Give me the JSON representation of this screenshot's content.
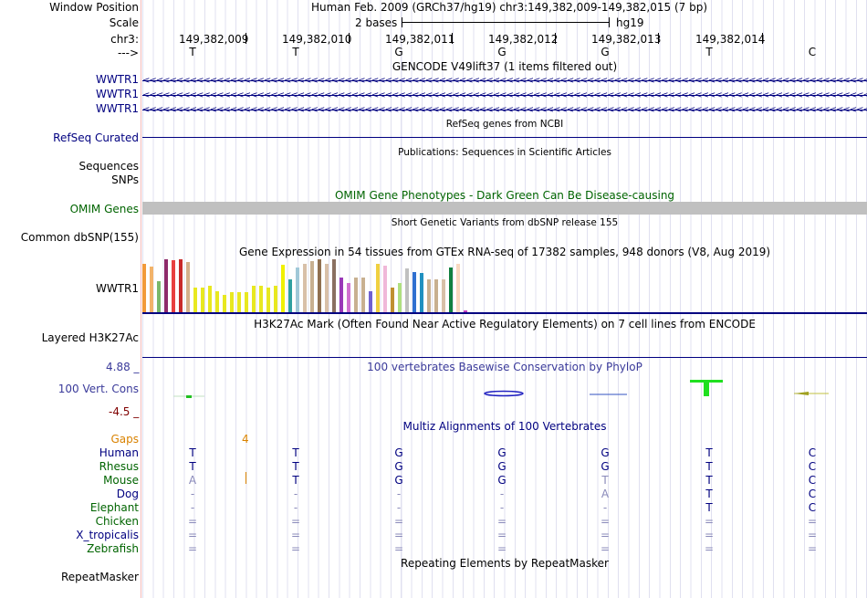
{
  "header": {
    "window_label": "Window Position",
    "scale_label": "Scale",
    "chrom_label": "chr3:",
    "arrow_label": "--->",
    "assembly_text": "Human Feb. 2009 (GRCh37/hg19)   chr3:149,382,009-149,382,015 (7 bp)",
    "scale_text": "2 bases",
    "scale_db": "hg19",
    "coords": [
      "149,382,009",
      "149,382,010",
      "149,382,011",
      "149,382,012",
      "149,382,013",
      "149,382,014"
    ],
    "sequence": [
      "T",
      "T",
      "G",
      "G",
      "G",
      "T",
      "C"
    ]
  },
  "tracks": {
    "gencode": {
      "title": "GENCODE V49lift37 (1 items filtered out)",
      "items": [
        "WWTR1",
        "WWTR1",
        "WWTR1"
      ],
      "strand_glyphs": "<<<<<<<<<<<<<<<<<<<<<<<<<<<<<<<<<<<<<<<<<<<<<<<<<<<<<<<<<<<<<<<<<<<<<<<<<<<<<<<<<<<<<<<<<<<<<<<<<<<<<<<<<<<<<<<<<<<<<<<<<<<<<<<<<<<<<<<<<<<"
    },
    "refseq": {
      "title": "RefSeq genes from NCBI",
      "label": "RefSeq Curated"
    },
    "publications": {
      "title": "Publications: Sequences in Scientific Articles",
      "label1": "Sequences",
      "label2": "SNPs"
    },
    "omim": {
      "title": "OMIM Gene Phenotypes - Dark Green Can Be Disease-causing",
      "label": "OMIM Genes"
    },
    "dbsnp": {
      "title": "Short Genetic Variants from dbSNP release 155",
      "label": "Common dbSNP(155)"
    },
    "gtex": {
      "title": "Gene Expression in 54 tissues from GTEx RNA-seq of 17382 samples, 948 donors (V8, Aug 2019)",
      "label": "WWTR1",
      "bars": [
        {
          "v": 0.92,
          "c": "#f29a3a"
        },
        {
          "v": 0.86,
          "c": "#f2b36a"
        },
        {
          "v": 0.58,
          "c": "#7ab86a"
        },
        {
          "v": 1.0,
          "c": "#8e2a6a"
        },
        {
          "v": 0.98,
          "c": "#e84040"
        },
        {
          "v": 1.0,
          "c": "#c82a2a"
        },
        {
          "v": 0.94,
          "c": "#d4b08a"
        },
        {
          "v": 0.46,
          "c": "#e8e820"
        },
        {
          "v": 0.46,
          "c": "#e8e820"
        },
        {
          "v": 0.5,
          "c": "#e8e820"
        },
        {
          "v": 0.4,
          "c": "#e8e820"
        },
        {
          "v": 0.32,
          "c": "#e8e820"
        },
        {
          "v": 0.38,
          "c": "#e8e820"
        },
        {
          "v": 0.38,
          "c": "#e8e820"
        },
        {
          "v": 0.38,
          "c": "#e8e820"
        },
        {
          "v": 0.5,
          "c": "#e8e820"
        },
        {
          "v": 0.5,
          "c": "#e8e820"
        },
        {
          "v": 0.46,
          "c": "#e8e820"
        },
        {
          "v": 0.5,
          "c": "#e8e820"
        },
        {
          "v": 0.9,
          "c": "#f0f000"
        },
        {
          "v": 0.62,
          "c": "#30a0a0"
        },
        {
          "v": 0.84,
          "c": "#a0c8d8"
        },
        {
          "v": 0.92,
          "c": "#d8c0a8"
        },
        {
          "v": 0.96,
          "c": "#c8b090"
        },
        {
          "v": 1.0,
          "c": "#907050"
        },
        {
          "v": 0.92,
          "c": "#d8c0a8"
        },
        {
          "v": 1.0,
          "c": "#8a7060"
        },
        {
          "v": 0.66,
          "c": "#9a38b8"
        },
        {
          "v": 0.56,
          "c": "#d070d0"
        },
        {
          "v": 0.66,
          "c": "#c8b090"
        },
        {
          "v": 0.66,
          "c": "#c8b090"
        },
        {
          "v": 0.4,
          "c": "#7060d0"
        },
        {
          "v": 0.92,
          "c": "#f0d040"
        },
        {
          "v": 0.88,
          "c": "#f0b8d8"
        },
        {
          "v": 0.46,
          "c": "#c09030"
        },
        {
          "v": 0.56,
          "c": "#b0e080"
        },
        {
          "v": 0.82,
          "c": "#c0c0c0"
        },
        {
          "v": 0.76,
          "c": "#3070d0"
        },
        {
          "v": 0.74,
          "c": "#2090c0"
        },
        {
          "v": 0.62,
          "c": "#c8b090"
        },
        {
          "v": 0.62,
          "c": "#c8b090"
        },
        {
          "v": 0.62,
          "c": "#d8c0a8"
        },
        {
          "v": 0.84,
          "c": "#108040"
        },
        {
          "v": 0.92,
          "c": "#f8d8c0"
        },
        {
          "v": 0.04,
          "c": "#c040c0"
        }
      ]
    },
    "h3k27ac": {
      "title": "H3K27Ac Mark (Often Found Near Active Regulatory Elements) on 7 cell lines from ENCODE",
      "label": "Layered H3K27Ac"
    },
    "phylop": {
      "title": "100 vertebrates Basewise Conservation by PhyloP",
      "label": "100 Vert. Cons",
      "max": "4.88 _",
      "min": "-4.5 _"
    },
    "multiz": {
      "title": "Multiz Alignments of 100 Vertebrates",
      "gaps_label": "Gaps",
      "gap_count": "4",
      "species": [
        {
          "name": "Human",
          "bases": [
            "T",
            "T",
            "G",
            "G",
            "G",
            "T",
            "C"
          ]
        },
        {
          "name": "Rhesus",
          "bases": [
            "T",
            "T",
            "G",
            "G",
            "G",
            "T",
            "C"
          ]
        },
        {
          "name": "Mouse",
          "bases": [
            "A",
            "T",
            "G",
            "G",
            "T",
            "T",
            "C"
          ]
        },
        {
          "name": "Dog",
          "bases": [
            "-",
            "-",
            "-",
            "-",
            "A",
            "T",
            "C"
          ]
        },
        {
          "name": "Elephant",
          "bases": [
            "-",
            "-",
            "-",
            "-",
            "-",
            "T",
            "C"
          ]
        },
        {
          "name": "Chicken",
          "bases": [
            "=",
            "=",
            "=",
            "=",
            "=",
            "=",
            "="
          ]
        },
        {
          "name": "X_tropicalis",
          "bases": [
            "=",
            "=",
            "=",
            "=",
            "=",
            "=",
            "="
          ]
        },
        {
          "name": "Zebrafish",
          "bases": [
            "=",
            "=",
            "=",
            "=",
            "=",
            "=",
            "="
          ]
        }
      ]
    },
    "repeatmasker": {
      "title": "Repeating Elements by RepeatMasker",
      "label": "RepeatMasker"
    }
  },
  "colors": {
    "navy": "#000080",
    "dark_green": "#006400",
    "omim_gray": "#c0c0c0",
    "gap_orange": "#d98200"
  }
}
